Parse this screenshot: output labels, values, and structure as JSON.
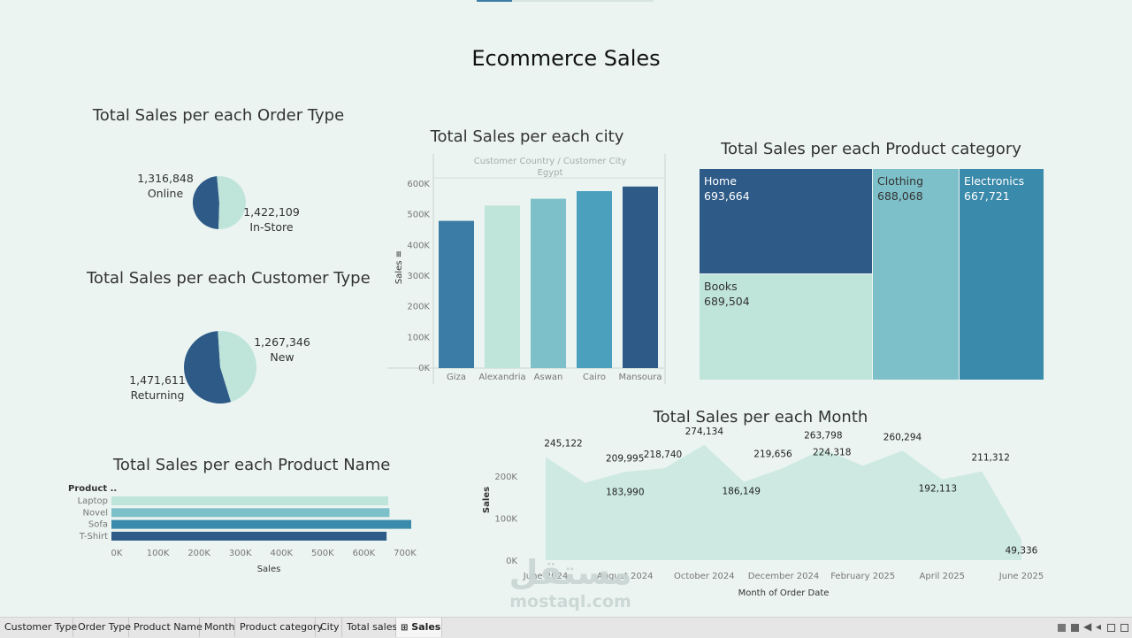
{
  "dashboard": {
    "title": "Ecommerce Sales"
  },
  "order_type": {
    "title": "Total Sales per each Order Type",
    "slices": [
      {
        "label": "Online",
        "value_text": "1,316,848"
      },
      {
        "label": "In-Store",
        "value_text": "1,422,109"
      }
    ]
  },
  "customer_type": {
    "title": "Total Sales per each Customer Type",
    "slices": [
      {
        "label": "New",
        "value_text": "1,267,346"
      },
      {
        "label": "Returning",
        "value_text": "1,471,611"
      }
    ]
  },
  "city": {
    "title": "Total Sales per each city",
    "header": "Customer Country / Customer City",
    "country": "Egypt",
    "ylabel": "Sales ≡"
  },
  "product_category": {
    "title": "Total Sales per each Product category",
    "cells": [
      {
        "name": "Home",
        "value_text": "693,664"
      },
      {
        "name": "Clothing",
        "value_text": "688,068"
      },
      {
        "name": "Electronics",
        "value_text": "667,721"
      },
      {
        "name": "Books",
        "value_text": "689,504"
      }
    ]
  },
  "product_name": {
    "title": "Total Sales per each Product Name",
    "header": "Product ..",
    "xlabel": "Sales"
  },
  "month": {
    "title": "Total Sales per each Month",
    "xlabel": "Month of Order Date",
    "ylabel": "Sales"
  },
  "watermark": {
    "arabic": "مستقل",
    "latin": "mostaql.com"
  },
  "tabs": [
    {
      "label": "Customer Type"
    },
    {
      "label": "Order Type"
    },
    {
      "label": "Product Name"
    },
    {
      "label": "Month"
    },
    {
      "label": "Product category"
    },
    {
      "label": "City"
    },
    {
      "label": "Total sales"
    },
    {
      "label": "Sales",
      "icon": "grid-icon",
      "active": true
    }
  ],
  "colors": {
    "dark_blue": "#2e5a87",
    "mid_blue": "#3a7ca5",
    "teal": "#4aa0bd",
    "light_teal": "#7ec0c9",
    "mint": "#bfe4da",
    "area_fill": "#cde9e1",
    "background": "#ebf4f1"
  },
  "chart_data": [
    {
      "id": "order_type",
      "type": "pie",
      "title": "Total Sales per each Order Type",
      "categories": [
        "Online",
        "In-Store"
      ],
      "values": [
        1316848,
        1422109
      ],
      "colors": [
        "#2e5a87",
        "#bfe4da"
      ]
    },
    {
      "id": "customer_type",
      "type": "pie",
      "title": "Total Sales per each Customer Type",
      "categories": [
        "Returning",
        "New"
      ],
      "values": [
        1471611,
        1267346
      ],
      "colors": [
        "#2e5a87",
        "#bfe4da"
      ]
    },
    {
      "id": "city",
      "type": "bar",
      "title": "Total Sales per each city",
      "categories": [
        "Giza",
        "Alexandria",
        "Aswan",
        "Cairo",
        "Mansoura"
      ],
      "values": [
        480000,
        530000,
        552000,
        577000,
        592000
      ],
      "colors": [
        "#3a7ca5",
        "#bfe4da",
        "#7ec0c9",
        "#4aa0bd",
        "#2e5a87"
      ],
      "ylabel": "Sales",
      "ylim": [
        0,
        650000
      ],
      "yticks": [
        0,
        100000,
        200000,
        300000,
        400000,
        500000,
        600000
      ],
      "ytick_labels": [
        "0K",
        "100K",
        "200K",
        "300K",
        "400K",
        "500K",
        "600K"
      ]
    },
    {
      "id": "product_category",
      "type": "treemap",
      "title": "Total Sales per each Product category",
      "categories": [
        "Home",
        "Books",
        "Clothing",
        "Electronics"
      ],
      "values": [
        693664,
        689504,
        688068,
        667721
      ],
      "colors": [
        "#2e5a87",
        "#bfe4da",
        "#7ec0c9",
        "#3a8aab"
      ]
    },
    {
      "id": "product_name",
      "type": "bar",
      "orientation": "horizontal",
      "title": "Total Sales per each Product Name",
      "categories": [
        "Laptop",
        "Novel",
        "Sofa",
        "T-Shirt"
      ],
      "values": [
        672000,
        675000,
        728000,
        668000
      ],
      "colors": [
        "#bfe4da",
        "#7ec0c9",
        "#3a8aab",
        "#2e5a87"
      ],
      "xlabel": "Sales",
      "xlim": [
        0,
        700000
      ],
      "xticks": [
        0,
        100000,
        200000,
        300000,
        400000,
        500000,
        600000,
        700000
      ],
      "xtick_labels": [
        "0K",
        "100K",
        "200K",
        "300K",
        "400K",
        "500K",
        "600K",
        "700K"
      ]
    },
    {
      "id": "month",
      "type": "area",
      "title": "Total Sales per each Month",
      "x": [
        "2024-06",
        "2024-07",
        "2024-08",
        "2024-09",
        "2024-10",
        "2024-11",
        "2024-12",
        "2025-01",
        "2025-02",
        "2025-03",
        "2025-04",
        "2025-05",
        "2025-06"
      ],
      "values": [
        245122,
        183990,
        209995,
        218740,
        274134,
        186149,
        219656,
        263798,
        224318,
        260294,
        192113,
        211312,
        49336
      ],
      "labels": [
        "245,122",
        "183,990",
        "209,995",
        "218,740",
        "274,134",
        "186,149",
        "219,656",
        "263,798",
        "224,318",
        "260,294",
        "192,113",
        "211,312",
        "49,336"
      ],
      "color": "#cde9e1",
      "xlabel": "Month of Order Date",
      "ylabel": "Sales",
      "ylim": [
        0,
        280000
      ],
      "yticks": [
        0,
        100000,
        200000
      ],
      "ytick_labels": [
        "0K",
        "100K",
        "200K"
      ],
      "xtick_labels": [
        "June 2024",
        "August 2024",
        "October 2024",
        "December 2024",
        "February 2025",
        "April 2025",
        "June 2025"
      ],
      "xtick_indices": [
        0,
        2,
        4,
        6,
        8,
        10,
        12
      ]
    }
  ]
}
